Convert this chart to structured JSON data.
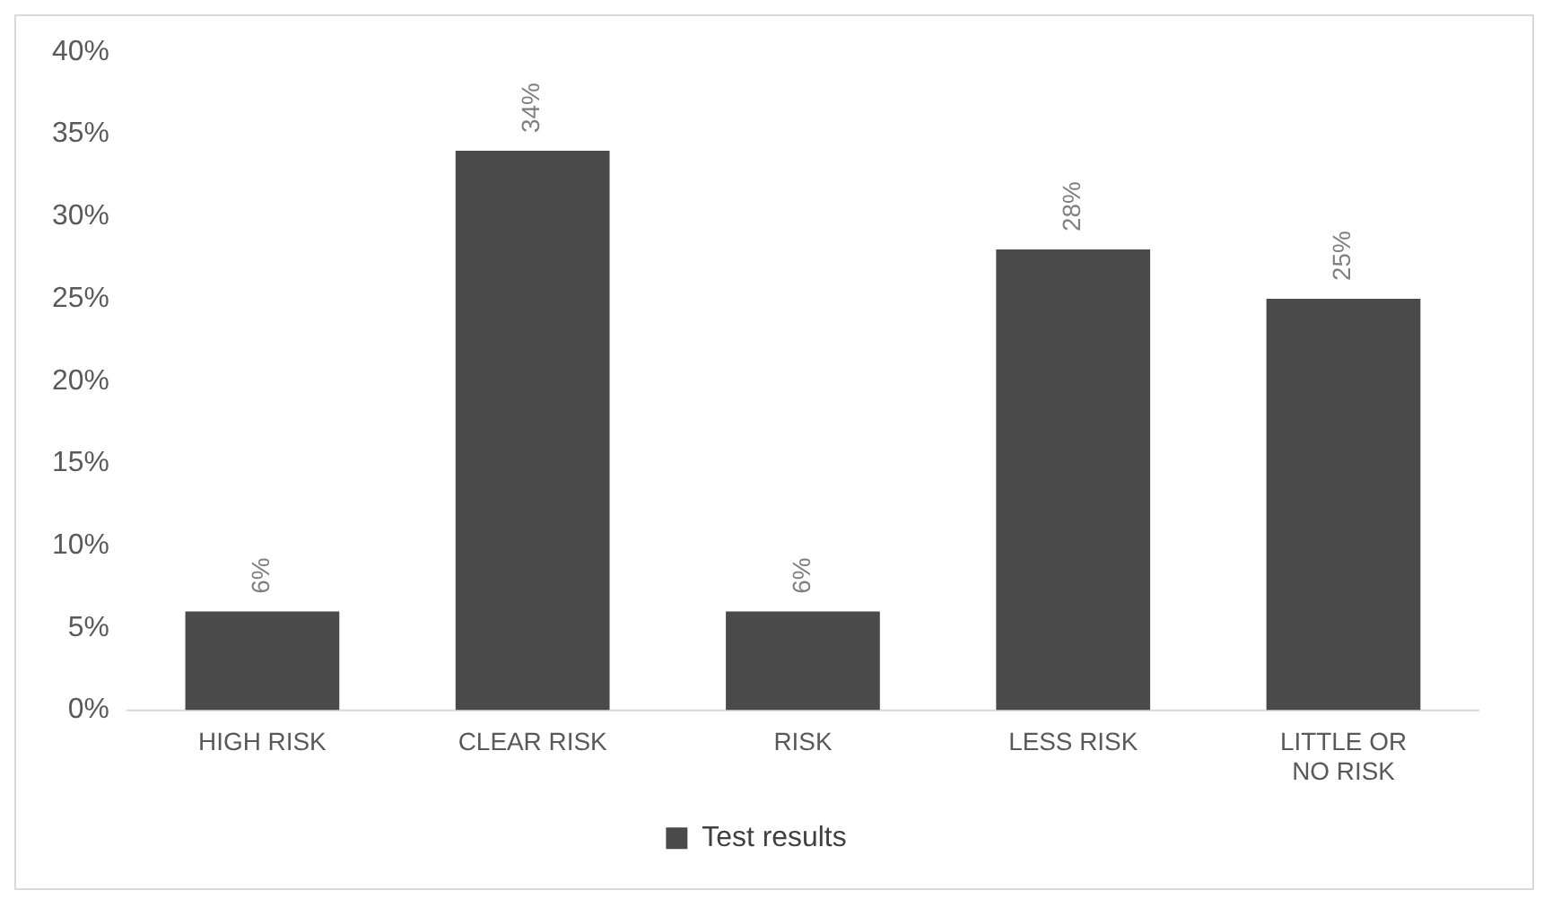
{
  "chart_data": {
    "type": "bar",
    "categories": [
      "HIGH RISK",
      "CLEAR RISK",
      "RISK",
      "LESS RISK",
      "LITTLE OR NO RISK"
    ],
    "series": [
      {
        "name": "Test results",
        "color": "#4a4a4a",
        "values": [
          6,
          34,
          6,
          28,
          25
        ],
        "value_labels": [
          "6%",
          "34%",
          "6%",
          "28%",
          "25%"
        ]
      }
    ],
    "ylim": [
      0,
      40
    ],
    "yticks": [
      {
        "value": 0,
        "label": "0%"
      },
      {
        "value": 5,
        "label": "5%"
      },
      {
        "value": 10,
        "label": "10%"
      },
      {
        "value": 15,
        "label": "15%"
      },
      {
        "value": 20,
        "label": "20%"
      },
      {
        "value": 25,
        "label": "25%"
      },
      {
        "value": 30,
        "label": "30%"
      },
      {
        "value": 35,
        "label": "35%"
      },
      {
        "value": 40,
        "label": "40%"
      }
    ],
    "grid": false,
    "legend": "bottom"
  }
}
